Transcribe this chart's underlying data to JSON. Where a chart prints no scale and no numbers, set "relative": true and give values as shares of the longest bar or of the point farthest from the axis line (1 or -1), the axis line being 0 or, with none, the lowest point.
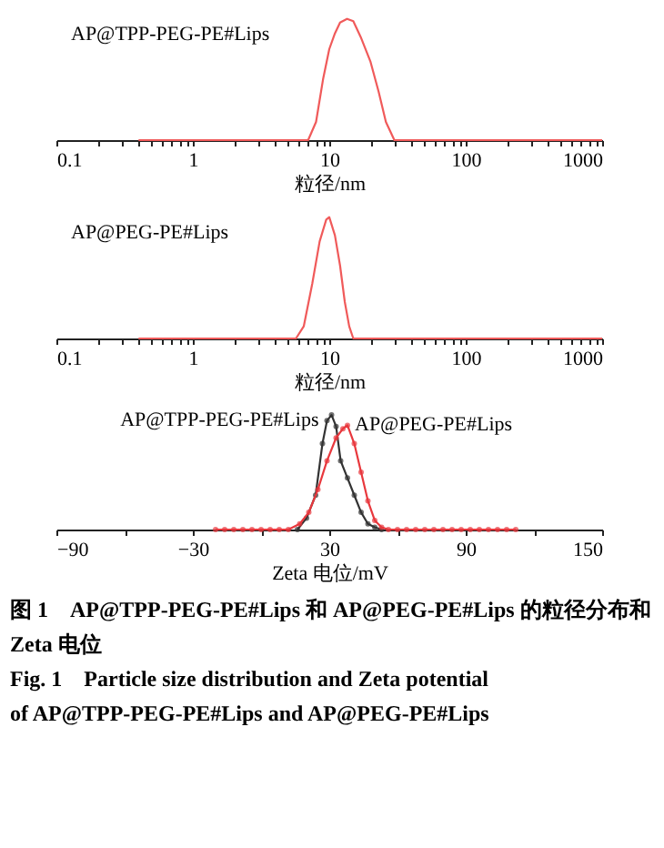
{
  "chart_data": [
    {
      "type": "line",
      "relative": true,
      "xlabel": "粒径/nm",
      "log": "x",
      "xlim": [
        0.1,
        1000
      ],
      "xticks": [
        0.1,
        {
          "value": 0.2,
          "label": null
        },
        {
          "value": 0.3,
          "label": null
        },
        {
          "value": 0.4,
          "label": null
        },
        {
          "value": 0.5,
          "label": null
        },
        {
          "value": 0.6,
          "label": null
        },
        {
          "value": 0.7,
          "label": null
        },
        {
          "value": 0.8,
          "label": null
        },
        {
          "value": 0.9,
          "label": null
        },
        1,
        {
          "value": 2,
          "label": null
        },
        {
          "value": 3,
          "label": null
        },
        {
          "value": 4,
          "label": null
        },
        {
          "value": 5,
          "label": null
        },
        {
          "value": 6,
          "label": null
        },
        {
          "value": 7,
          "label": null
        },
        {
          "value": 8,
          "label": null
        },
        {
          "value": 9,
          "label": null
        },
        10,
        {
          "value": 20,
          "label": null
        },
        {
          "value": 30,
          "label": null
        },
        {
          "value": 40,
          "label": null
        },
        {
          "value": 50,
          "label": null
        },
        {
          "value": 60,
          "label": null
        },
        {
          "value": 70,
          "label": null
        },
        {
          "value": 80,
          "label": null
        },
        {
          "value": 90,
          "label": null
        },
        100,
        {
          "value": 200,
          "label": null
        },
        {
          "value": 300,
          "label": null
        },
        {
          "value": 400,
          "label": null
        },
        {
          "value": 500,
          "label": null
        },
        {
          "value": 600,
          "label": null
        },
        {
          "value": 700,
          "label": null
        },
        {
          "value": 800,
          "label": null
        },
        {
          "value": 900,
          "label": null
        },
        1000
      ],
      "grid": false,
      "marker": "none",
      "tick_labels": "x",
      "series": [
        {
          "name": "AP@TPP-PEG-PE#Lips",
          "color": "#f05a5a",
          "x": [
            0.4,
            1,
            2,
            5,
            7,
            8,
            9,
            10,
            11,
            12,
            13.5,
            15,
            17,
            20,
            23,
            26,
            30,
            100,
            1000
          ],
          "values": [
            0,
            0,
            0,
            0,
            0,
            0.15,
            0.5,
            0.75,
            0.88,
            0.97,
            1,
            0.98,
            0.85,
            0.65,
            0.4,
            0.15,
            0,
            0,
            0
          ]
        }
      ]
    },
    {
      "type": "line",
      "relative": true,
      "xlabel": "粒径/nm",
      "log": "x",
      "xlim": [
        0.1,
        1000
      ],
      "xticks": [
        0.1,
        {
          "value": 0.2,
          "label": null
        },
        {
          "value": 0.3,
          "label": null
        },
        {
          "value": 0.4,
          "label": null
        },
        {
          "value": 0.5,
          "label": null
        },
        {
          "value": 0.6,
          "label": null
        },
        {
          "value": 0.7,
          "label": null
        },
        {
          "value": 0.8,
          "label": null
        },
        {
          "value": 0.9,
          "label": null
        },
        1,
        {
          "value": 2,
          "label": null
        },
        {
          "value": 3,
          "label": null
        },
        {
          "value": 4,
          "label": null
        },
        {
          "value": 5,
          "label": null
        },
        {
          "value": 6,
          "label": null
        },
        {
          "value": 7,
          "label": null
        },
        {
          "value": 8,
          "label": null
        },
        {
          "value": 9,
          "label": null
        },
        10,
        {
          "value": 20,
          "label": null
        },
        {
          "value": 30,
          "label": null
        },
        {
          "value": 40,
          "label": null
        },
        {
          "value": 50,
          "label": null
        },
        {
          "value": 60,
          "label": null
        },
        {
          "value": 70,
          "label": null
        },
        {
          "value": 80,
          "label": null
        },
        {
          "value": 90,
          "label": null
        },
        100,
        {
          "value": 200,
          "label": null
        },
        {
          "value": 300,
          "label": null
        },
        {
          "value": 400,
          "label": null
        },
        {
          "value": 500,
          "label": null
        },
        {
          "value": 600,
          "label": null
        },
        {
          "value": 700,
          "label": null
        },
        {
          "value": 800,
          "label": null
        },
        {
          "value": 900,
          "label": null
        },
        1000
      ],
      "grid": false,
      "marker": "none",
      "tick_labels": "x",
      "series": [
        {
          "name": "AP@PEG-PE#Lips",
          "color": "#f05a5a",
          "x": [
            0.4,
            1,
            2,
            5.7,
            6.5,
            7.5,
            8.5,
            9.5,
            10,
            11,
            12,
            13,
            14,
            15,
            100,
            1000
          ],
          "values": [
            0,
            0,
            0,
            0,
            0.1,
            0.45,
            0.8,
            0.98,
            1,
            0.85,
            0.6,
            0.3,
            0.1,
            0,
            0,
            0
          ]
        }
      ]
    },
    {
      "type": "line",
      "relative": true,
      "xlabel": "Zeta 电位/mV",
      "xlim": [
        -90,
        150
      ],
      "xticks": [
        -90,
        {
          "value": -60,
          "label": null
        },
        -30,
        {
          "value": 0,
          "label": null
        },
        30,
        {
          "value": 60,
          "label": null
        },
        90,
        {
          "value": 120,
          "label": null
        },
        150
      ],
      "grid": false,
      "marker": "circle",
      "tick_labels": "x",
      "series": [
        {
          "name": "AP@TPP-PEG-PE#Lips",
          "color": "#333333",
          "x": [
            16,
            20,
            24,
            27,
            29,
            31,
            33,
            35,
            38,
            41,
            44,
            47,
            50,
            53
          ],
          "values": [
            0,
            0.1,
            0.3,
            0.75,
            0.95,
            1,
            0.9,
            0.6,
            0.45,
            0.3,
            0.15,
            0.05,
            0.02,
            0
          ]
        },
        {
          "name": "AP@PEG-PE#Lips",
          "color": "#e8383d",
          "x": [
            -20,
            -16,
            -12,
            -8,
            -4,
            0,
            4,
            8,
            12,
            17,
            21,
            25,
            29,
            33,
            36,
            38,
            41,
            44,
            47,
            50,
            53,
            56,
            60,
            64,
            68,
            72,
            76,
            80,
            84,
            88,
            92,
            96,
            100,
            104,
            108,
            112
          ],
          "values": [
            0,
            0,
            0,
            0,
            0,
            0,
            0,
            0,
            0,
            0.05,
            0.15,
            0.35,
            0.6,
            0.8,
            0.88,
            0.91,
            0.75,
            0.5,
            0.25,
            0.08,
            0.02,
            0,
            0,
            0,
            0,
            0,
            0,
            0,
            0,
            0,
            0,
            0,
            0,
            0,
            0,
            0
          ]
        }
      ],
      "annotations": [
        "图 1　AP@TPP-PEG-PE#Lips 和 AP@PEG-PE#Lips 的粒径分布和 Zeta 电位",
        "Fig. 1　Particle size distribution and Zeta potential of AP@TPP-PEG-PE#Lips and AP@PEG-PE#Lips"
      ]
    }
  ]
}
